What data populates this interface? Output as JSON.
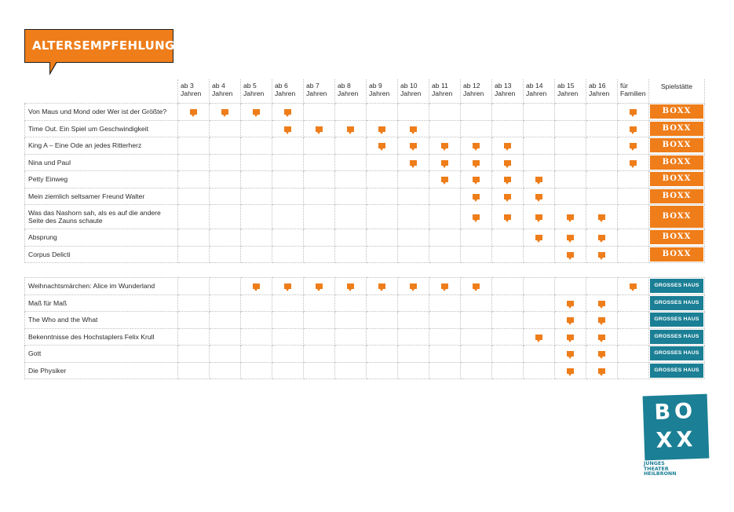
{
  "header": {
    "title": "ALTERSEMPFEHLUNG"
  },
  "columns": {
    "ages": [
      {
        "top": "ab 3",
        "bottom": "Jahren"
      },
      {
        "top": "ab 4",
        "bottom": "Jahren"
      },
      {
        "top": "ab 5",
        "bottom": "Jahren"
      },
      {
        "top": "ab 6",
        "bottom": "Jahren"
      },
      {
        "top": "ab 7",
        "bottom": "Jahren"
      },
      {
        "top": "ab 8",
        "bottom": "Jahren"
      },
      {
        "top": "ab 9",
        "bottom": "Jahren"
      },
      {
        "top": "ab 10",
        "bottom": "Jahren"
      },
      {
        "top": "ab 11",
        "bottom": "Jahren"
      },
      {
        "top": "ab 12",
        "bottom": "Jahren"
      },
      {
        "top": "ab 13",
        "bottom": "Jahren"
      },
      {
        "top": "ab 14",
        "bottom": "Jahren"
      },
      {
        "top": "ab 15",
        "bottom": "Jahren"
      },
      {
        "top": "ab 16",
        "bottom": "Jahren"
      },
      {
        "top": "für",
        "bottom": "Familien"
      }
    ],
    "venue_header": "Spielstätte"
  },
  "groups": [
    {
      "venue_style": "boxx",
      "rows": [
        {
          "title": "Von Maus und Mond oder Wer ist der Größte?",
          "marks": [
            1,
            1,
            1,
            1,
            0,
            0,
            0,
            0,
            0,
            0,
            0,
            0,
            0,
            0,
            1
          ],
          "venue": "BOXX"
        },
        {
          "title": "Time Out. Ein Spiel um Geschwindigkeit",
          "marks": [
            0,
            0,
            0,
            1,
            1,
            1,
            1,
            1,
            0,
            0,
            0,
            0,
            0,
            0,
            1
          ],
          "venue": "BOXX"
        },
        {
          "title": "King A – Eine Ode an jedes Ritterherz",
          "marks": [
            0,
            0,
            0,
            0,
            0,
            0,
            1,
            1,
            1,
            1,
            1,
            0,
            0,
            0,
            1
          ],
          "venue": "BOXX"
        },
        {
          "title": "Nina und Paul",
          "marks": [
            0,
            0,
            0,
            0,
            0,
            0,
            0,
            1,
            1,
            1,
            1,
            0,
            0,
            0,
            1
          ],
          "venue": "BOXX"
        },
        {
          "title": "Petty Einweg",
          "marks": [
            0,
            0,
            0,
            0,
            0,
            0,
            0,
            0,
            1,
            1,
            1,
            1,
            0,
            0,
            0
          ],
          "venue": "BOXX"
        },
        {
          "title": "Mein ziemlich seltsamer Freund Walter",
          "marks": [
            0,
            0,
            0,
            0,
            0,
            0,
            0,
            0,
            0,
            1,
            1,
            1,
            0,
            0,
            0
          ],
          "venue": "BOXX"
        },
        {
          "title": "Was das Nashorn sah, als es auf die andere Seite des Zauns schaute",
          "tall": true,
          "marks": [
            0,
            0,
            0,
            0,
            0,
            0,
            0,
            0,
            0,
            1,
            1,
            1,
            1,
            1,
            0
          ],
          "venue": "BOXX"
        },
        {
          "title": "Absprung",
          "marks": [
            0,
            0,
            0,
            0,
            0,
            0,
            0,
            0,
            0,
            0,
            0,
            1,
            1,
            1,
            0
          ],
          "venue": "BOXX"
        },
        {
          "title": "Corpus Delicti",
          "marks": [
            0,
            0,
            0,
            0,
            0,
            0,
            0,
            0,
            0,
            0,
            0,
            0,
            1,
            1,
            0
          ],
          "venue": "BOXX"
        }
      ]
    },
    {
      "venue_style": "gh",
      "rows": [
        {
          "title": "Weihnachtsmärchen: Alice im Wunderland",
          "marks": [
            0,
            0,
            1,
            1,
            1,
            1,
            1,
            1,
            1,
            1,
            0,
            0,
            0,
            0,
            1
          ],
          "venue": "GROSSES HAUS"
        },
        {
          "title": "Maß für Maß",
          "marks": [
            0,
            0,
            0,
            0,
            0,
            0,
            0,
            0,
            0,
            0,
            0,
            0,
            1,
            1,
            0
          ],
          "venue": "GROSSES HAUS"
        },
        {
          "title": "The Who and the What",
          "marks": [
            0,
            0,
            0,
            0,
            0,
            0,
            0,
            0,
            0,
            0,
            0,
            0,
            1,
            1,
            0
          ],
          "venue": "GROSSES HAUS"
        },
        {
          "title": "Bekenntnisse des Hochstaplers Felix Krull",
          "marks": [
            0,
            0,
            0,
            0,
            0,
            0,
            0,
            0,
            0,
            0,
            0,
            1,
            1,
            1,
            0
          ],
          "venue": "GROSSES HAUS"
        },
        {
          "title": "Gott",
          "marks": [
            0,
            0,
            0,
            0,
            0,
            0,
            0,
            0,
            0,
            0,
            0,
            0,
            1,
            1,
            0
          ],
          "venue": "GROSSES HAUS"
        },
        {
          "title": "Die Physiker",
          "marks": [
            0,
            0,
            0,
            0,
            0,
            0,
            0,
            0,
            0,
            0,
            0,
            0,
            1,
            1,
            0
          ],
          "venue": "GROSSES HAUS"
        }
      ]
    }
  ],
  "logo": {
    "line1": "BO",
    "line2": "XX",
    "sub": [
      "JUNGES",
      "THEATER",
      "HEILBRONN"
    ]
  },
  "colors": {
    "orange": "#ee7d1a",
    "teal": "#1b7f95"
  }
}
